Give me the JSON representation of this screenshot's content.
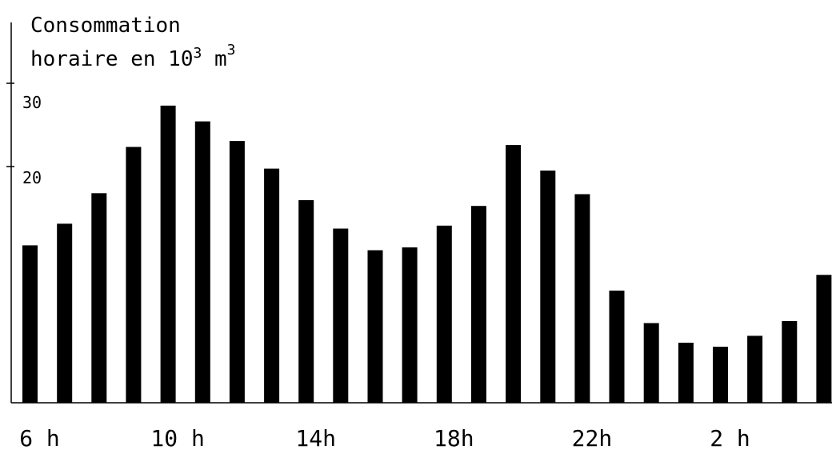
{
  "chart_data": {
    "type": "bar",
    "title_line1": "Consommation",
    "title_line2_prefix": "horaire en 10",
    "title_line2_exp1": "3",
    "title_line2_unit": " m",
    "title_line2_exp2": "3",
    "categories": [
      "6h",
      "7h",
      "8h",
      "9h",
      "10h",
      "11h",
      "12h",
      "13h",
      "14h",
      "15h",
      "16h",
      "17h",
      "18h",
      "19h",
      "20h",
      "21h",
      "22h",
      "23h",
      "0h",
      "1h",
      "2h",
      "3h",
      "4h",
      "5h"
    ],
    "values": [
      16.0,
      18.2,
      21.3,
      26.0,
      30.2,
      28.6,
      26.6,
      23.8,
      20.6,
      17.7,
      15.5,
      15.8,
      18.0,
      20.0,
      26.2,
      23.6,
      21.2,
      11.4,
      8.1,
      6.1,
      5.7,
      6.8,
      8.3,
      13.0
    ],
    "xticks": [
      {
        "label": "6 h",
        "index": 0
      },
      {
        "label": "10 h",
        "index": 4
      },
      {
        "label": "14h",
        "index": 8
      },
      {
        "label": "18h",
        "index": 12
      },
      {
        "label": "22h",
        "index": 16
      },
      {
        "label": "2 h",
        "index": 20
      }
    ],
    "yticks": [
      {
        "label": "30",
        "value": 30
      },
      {
        "label": "20",
        "value": 20
      }
    ],
    "ylim": [
      0,
      40
    ],
    "grid": false,
    "bar_color": "#000000"
  }
}
